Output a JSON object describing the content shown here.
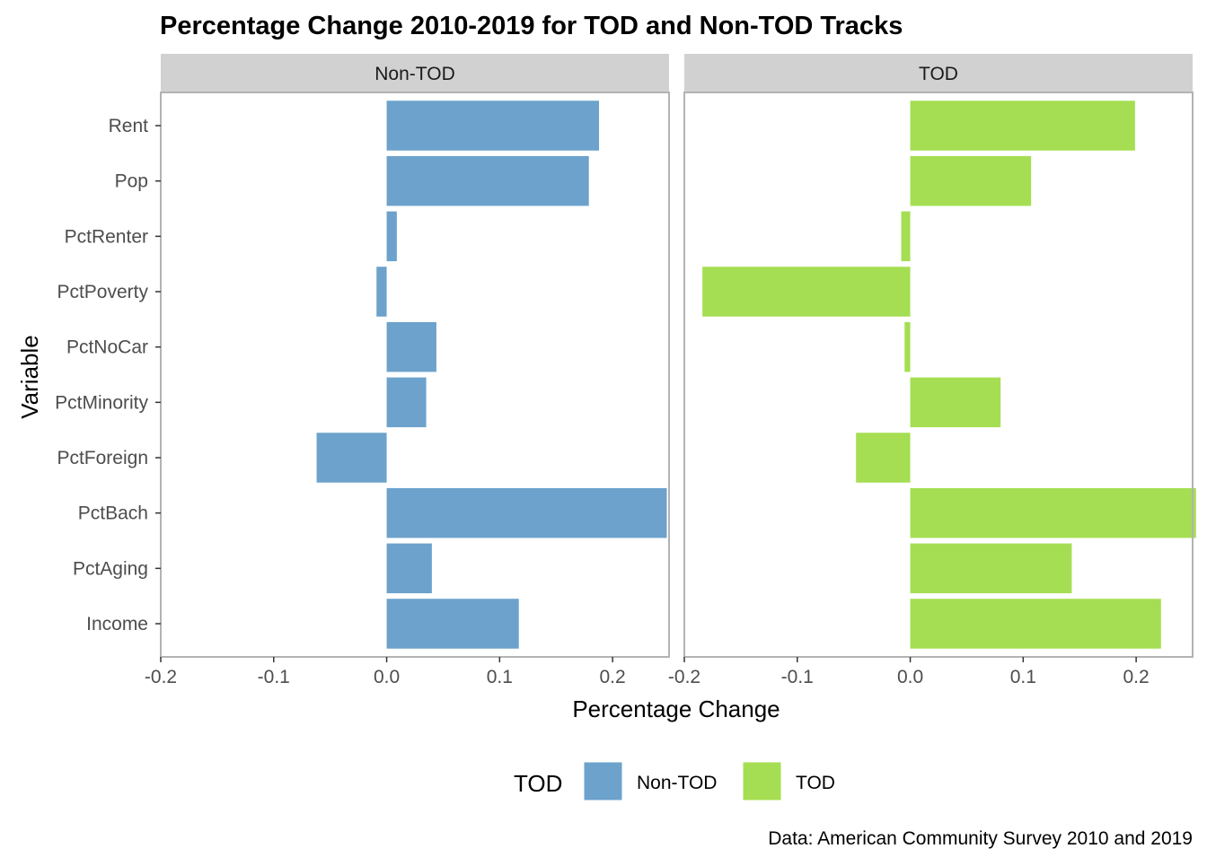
{
  "chart_data": {
    "type": "bar",
    "orientation": "horizontal",
    "title": "Percentage Change 2010-2019 for TOD and Non-TOD Tracks",
    "xlabel": "Percentage Change",
    "ylabel": "Variable",
    "caption": "Data: American Community Survey 2010 and 2019",
    "xlim": [
      -0.2,
      0.25
    ],
    "x_ticks": [
      -0.2,
      -0.1,
      0.0,
      0.1,
      0.2
    ],
    "x_tick_labels": [
      "-0.2",
      "-0.1",
      "0.0",
      "0.1",
      "0.2"
    ],
    "grid": false,
    "categories": [
      "Rent",
      "Pop",
      "PctRenter",
      "PctPoverty",
      "PctNoCar",
      "PctMinority",
      "PctForeign",
      "PctBach",
      "PctAging",
      "Income"
    ],
    "legend": {
      "title": "TOD",
      "position": "bottom",
      "items": [
        {
          "label": "Non-TOD",
          "color": "#6ca2cc"
        },
        {
          "label": "TOD",
          "color": "#a5de52"
        }
      ]
    },
    "series": [
      {
        "name": "Non-TOD",
        "color": "#6ca2cc",
        "values": [
          0.188,
          0.179,
          0.009,
          -0.009,
          0.044,
          0.035,
          -0.062,
          0.248,
          0.04,
          0.117
        ]
      },
      {
        "name": "TOD",
        "color": "#a5de52",
        "values": [
          0.199,
          0.107,
          -0.008,
          -0.184,
          -0.005,
          0.08,
          -0.048,
          0.253,
          0.143,
          0.222
        ]
      }
    ]
  }
}
